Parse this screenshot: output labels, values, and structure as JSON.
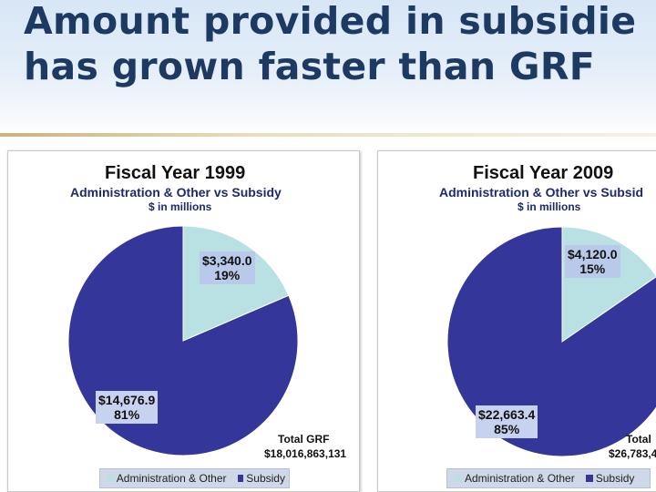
{
  "slide": {
    "title_line1": "Amount provided in subsidie",
    "title_line2": "has grown faster than GRF"
  },
  "colors": {
    "administration": "#b9e0e3",
    "subsidy": "#35369a",
    "title": "#1d3a63"
  },
  "chart_data": [
    {
      "type": "pie",
      "title": "Fiscal Year 1999",
      "subtitle": "Administration & Other vs Subsidy",
      "units": "$ in millions",
      "categories": [
        "Administration & Other",
        "Subsidy"
      ],
      "values": [
        3340.0,
        14676.9
      ],
      "percent": [
        19,
        81
      ],
      "labels": [
        {
          "value": "$3,340.0",
          "percent": "19%"
        },
        {
          "value": "$14,676.9",
          "percent": "81%"
        }
      ],
      "total_label": "Total GRF",
      "total_value": "$18,016,863,131",
      "legend": [
        "Administration & Other",
        "Subsidy"
      ],
      "legend_position": "bottom"
    },
    {
      "type": "pie",
      "title": "Fiscal Year 2009",
      "subtitle": "Administration & Other vs Subsid",
      "units": "$ in millions",
      "categories": [
        "Administration & Other",
        "Subsidy"
      ],
      "values": [
        4120.0,
        22663.4
      ],
      "percent": [
        15,
        85
      ],
      "labels": [
        {
          "value": "$4,120.0",
          "percent": "15%"
        },
        {
          "value": "$22,663.4",
          "percent": "85%"
        }
      ],
      "total_label": "Total",
      "total_value": "$26,783,4",
      "legend": [
        "Administration & Other",
        "Subsidy"
      ],
      "legend_position": "bottom"
    }
  ]
}
